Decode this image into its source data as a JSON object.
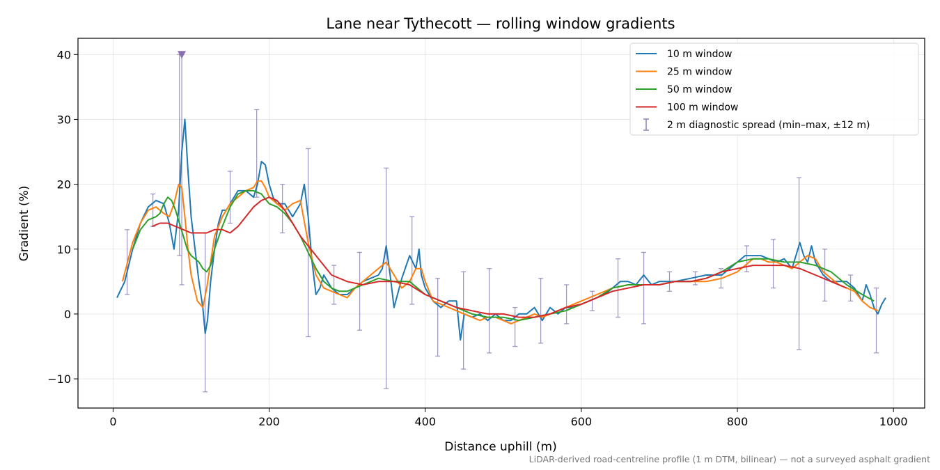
{
  "chart_data": {
    "type": "line",
    "title": "Lane near Tythecott — rolling window gradients",
    "xlabel": "Distance uphill (m)",
    "ylabel": "Gradient (%)",
    "xlim": [
      -45,
      1040
    ],
    "ylim": [
      -14.5,
      42.5
    ],
    "xticks": [
      0,
      200,
      400,
      600,
      800,
      1000
    ],
    "xtick_labels": [
      "0",
      "200",
      "400",
      "600",
      "800",
      "1000"
    ],
    "yticks": [
      -10,
      0,
      10,
      20,
      30,
      40
    ],
    "ytick_labels": [
      "−10",
      "0",
      "10",
      "20",
      "30",
      "40"
    ],
    "grid": true,
    "legend_position": "top-right",
    "footnote": "LiDAR-derived road-centreline profile (1 m DTM, bilinear) — not a surveyed asphalt gradient",
    "series": [
      {
        "name": "10 m window",
        "color": "#1f77b4",
        "x": [
          5,
          15,
          25,
          35,
          45,
          55,
          65,
          72,
          78,
          84,
          88,
          92,
          96,
          100,
          105,
          110,
          115,
          118,
          121,
          125,
          130,
          135,
          140,
          145,
          150,
          160,
          170,
          180,
          185,
          190,
          195,
          200,
          205,
          210,
          220,
          230,
          240,
          245,
          250,
          255,
          260,
          265,
          270,
          280,
          290,
          300,
          310,
          320,
          330,
          340,
          345,
          350,
          355,
          360,
          370,
          380,
          388,
          392,
          395,
          400,
          410,
          420,
          430,
          440,
          445,
          450,
          460,
          470,
          480,
          490,
          500,
          510,
          520,
          530,
          540,
          550,
          560,
          570,
          580,
          590,
          600,
          610,
          620,
          630,
          640,
          650,
          660,
          670,
          680,
          690,
          700,
          720,
          740,
          760,
          780,
          800,
          810,
          820,
          830,
          840,
          850,
          860,
          870,
          875,
          880,
          885,
          890,
          895,
          900,
          910,
          920,
          930,
          940,
          950,
          960,
          965,
          970,
          975,
          980,
          985,
          990
        ],
        "y": [
          2.5,
          5,
          10,
          14,
          16.5,
          17.5,
          17,
          14,
          10,
          16,
          25,
          30,
          22,
          15,
          10,
          5,
          1,
          -3,
          -1,
          5,
          10,
          14,
          16,
          16,
          17,
          19,
          19,
          18,
          20,
          23.5,
          23,
          20,
          18,
          17,
          17,
          15,
          17,
          20,
          15,
          8,
          3,
          4,
          6,
          4,
          3,
          3,
          4,
          5,
          5.5,
          6,
          7,
          10.5,
          6,
          1,
          5.5,
          9,
          7,
          10,
          6,
          4,
          2,
          1,
          2,
          2,
          -4,
          0,
          -0.5,
          0,
          -1,
          0,
          -1,
          -1,
          0,
          0,
          1,
          -1,
          1,
          0,
          1,
          1,
          1.5,
          2,
          2.5,
          3,
          4,
          5,
          5,
          4.5,
          6,
          4.5,
          5,
          5,
          5.5,
          6,
          6,
          8,
          9,
          9,
          9,
          8.5,
          8,
          8.5,
          7,
          9,
          11,
          9,
          8,
          10.5,
          8,
          6,
          5,
          5,
          5,
          4,
          2,
          4.5,
          3,
          1,
          0,
          1.5,
          2.5
        ]
      },
      {
        "name": "25 m window",
        "color": "#ff7f0e",
        "x": [
          12,
          25,
          35,
          45,
          55,
          65,
          72,
          78,
          84,
          88,
          92,
          96,
          100,
          108,
          115,
          120,
          125,
          130,
          140,
          150,
          160,
          170,
          180,
          185,
          190,
          195,
          200,
          210,
          220,
          230,
          240,
          250,
          260,
          270,
          280,
          290,
          300,
          310,
          320,
          330,
          340,
          350,
          360,
          370,
          380,
          388,
          395,
          400,
          410,
          420,
          430,
          440,
          450,
          460,
          470,
          480,
          490,
          500,
          510,
          520,
          530,
          540,
          550,
          560,
          570,
          580,
          590,
          600,
          620,
          640,
          660,
          680,
          700,
          720,
          740,
          760,
          780,
          800,
          810,
          820,
          830,
          840,
          850,
          860,
          870,
          880,
          890,
          900,
          910,
          920,
          930,
          940,
          950,
          960,
          970,
          980
        ],
        "y": [
          5,
          11,
          14,
          16,
          16.5,
          15.5,
          15,
          17,
          20,
          19.5,
          15,
          10,
          6,
          2,
          1,
          4,
          8,
          12,
          15,
          17,
          18,
          19,
          19.5,
          20.5,
          20.5,
          19.5,
          18,
          17,
          16,
          17,
          17.5,
          11,
          6,
          4,
          3.5,
          3,
          2.5,
          4,
          5,
          6,
          7,
          8,
          6,
          4,
          5,
          7,
          7,
          5,
          2,
          1.5,
          1,
          0.5,
          0,
          -0.5,
          -1,
          -0.5,
          -0.5,
          -1,
          -1.5,
          -1,
          -0.5,
          0,
          -0.5,
          0,
          0.5,
          1,
          1.5,
          2,
          3,
          4,
          4.5,
          4.5,
          4.5,
          5,
          5,
          5,
          5.5,
          6.5,
          7.5,
          8.5,
          8.5,
          8,
          8,
          7.5,
          7,
          8,
          9,
          8.5,
          6.5,
          5.5,
          4.5,
          4,
          3.5,
          2,
          1,
          0.5
        ]
      },
      {
        "name": "50 m window",
        "color": "#2ca02c",
        "x": [
          25,
          35,
          45,
          55,
          60,
          65,
          70,
          75,
          80,
          85,
          90,
          95,
          100,
          105,
          110,
          115,
          120,
          125,
          130,
          140,
          150,
          160,
          170,
          180,
          190,
          200,
          210,
          220,
          230,
          240,
          250,
          260,
          270,
          280,
          290,
          300,
          320,
          340,
          360,
          380,
          400,
          420,
          440,
          460,
          480,
          500,
          520,
          540,
          560,
          580,
          600,
          620,
          640,
          660,
          680,
          700,
          720,
          740,
          760,
          780,
          800,
          820,
          840,
          860,
          880,
          900,
          920,
          940,
          960,
          975
        ],
        "y": [
          10,
          13,
          14.5,
          15,
          15.5,
          17,
          18,
          17.5,
          16,
          14,
          12,
          10,
          9,
          8.5,
          8,
          7,
          6.5,
          7.5,
          10,
          13.5,
          16.5,
          18.5,
          19,
          19,
          18.5,
          17,
          16.5,
          15.5,
          14,
          12,
          9.5,
          7,
          5,
          4,
          3.5,
          3.5,
          4.5,
          5.5,
          5,
          5,
          3,
          2,
          1,
          0,
          -0.5,
          -0.5,
          -1,
          -0.5,
          0,
          0.5,
          1.5,
          2.5,
          4,
          4.5,
          4.5,
          4.5,
          5,
          5,
          5.5,
          6.5,
          8,
          8.5,
          8.5,
          8,
          8,
          7.5,
          6.5,
          4.5,
          3,
          2
        ]
      },
      {
        "name": "100 m window",
        "color": "#d62728",
        "x": [
          50,
          60,
          70,
          80,
          90,
          100,
          110,
          120,
          130,
          140,
          150,
          160,
          170,
          180,
          190,
          200,
          210,
          220,
          230,
          240,
          250,
          260,
          270,
          280,
          300,
          320,
          340,
          360,
          380,
          400,
          420,
          440,
          460,
          480,
          500,
          520,
          540,
          560,
          580,
          600,
          620,
          640,
          660,
          680,
          700,
          720,
          740,
          760,
          780,
          800,
          820,
          840,
          860,
          880,
          900,
          920,
          940
        ],
        "y": [
          13.5,
          14,
          14,
          13.5,
          13,
          12.5,
          12.5,
          12.5,
          13,
          13,
          12.5,
          13.5,
          15,
          16.5,
          17.5,
          18,
          17.5,
          16,
          14,
          12,
          10.5,
          9,
          7.5,
          6,
          5,
          4.5,
          5,
          5,
          4.5,
          3,
          2,
          1,
          0.5,
          0,
          0,
          -0.5,
          -0.5,
          0,
          1,
          1.5,
          2.5,
          3.5,
          4,
          4.5,
          4.5,
          5,
          5,
          5.5,
          6.5,
          7,
          7.5,
          7.5,
          7.5,
          7,
          6,
          5,
          4
        ]
      },
      {
        "name": "2 m diagnostic spread (min–max, ±12 m)",
        "color": "#8c82b8",
        "type": "errorbar",
        "points": [
          {
            "x": 18,
            "min": 3,
            "max": 13
          },
          {
            "x": 51,
            "min": 13.5,
            "max": 18.5
          },
          {
            "x": 85,
            "min": 9,
            "max": 40
          },
          {
            "x": 88,
            "min": 4.5,
            "max": 40
          },
          {
            "x": 118,
            "min": -12,
            "max": 12.5
          },
          {
            "x": 150,
            "min": 14,
            "max": 22
          },
          {
            "x": 184,
            "min": 18,
            "max": 31.5
          },
          {
            "x": 217,
            "min": 12.5,
            "max": 20
          },
          {
            "x": 250,
            "min": -3.5,
            "max": 25.5
          },
          {
            "x": 283,
            "min": 1.5,
            "max": 7.5
          },
          {
            "x": 316,
            "min": -2.5,
            "max": 9.5
          },
          {
            "x": 350,
            "min": -11.5,
            "max": 22.5
          },
          {
            "x": 383,
            "min": 1.5,
            "max": 15
          },
          {
            "x": 416,
            "min": -6.5,
            "max": 5.5
          },
          {
            "x": 449,
            "min": -8.5,
            "max": 6.5
          },
          {
            "x": 482,
            "min": -6,
            "max": 7
          },
          {
            "x": 515,
            "min": -5,
            "max": 1
          },
          {
            "x": 548,
            "min": -4.5,
            "max": 5.5
          },
          {
            "x": 581,
            "min": -1.5,
            "max": 4.5
          },
          {
            "x": 614,
            "min": 0.5,
            "max": 3.5
          },
          {
            "x": 647,
            "min": -0.5,
            "max": 8.5
          },
          {
            "x": 680,
            "min": -1.5,
            "max": 9.5
          },
          {
            "x": 713,
            "min": 3.5,
            "max": 6.5
          },
          {
            "x": 746,
            "min": 4.5,
            "max": 6.5
          },
          {
            "x": 779,
            "min": 4,
            "max": 7
          },
          {
            "x": 812,
            "min": 6.5,
            "max": 10.5
          },
          {
            "x": 846,
            "min": 4,
            "max": 11.5
          },
          {
            "x": 879,
            "min": -5.5,
            "max": 21
          },
          {
            "x": 912,
            "min": 2,
            "max": 10
          },
          {
            "x": 945,
            "min": 2,
            "max": 6
          },
          {
            "x": 978,
            "min": -6,
            "max": 4
          }
        ],
        "clipped_marker": {
          "x": 88,
          "y": 40
        }
      }
    ]
  }
}
